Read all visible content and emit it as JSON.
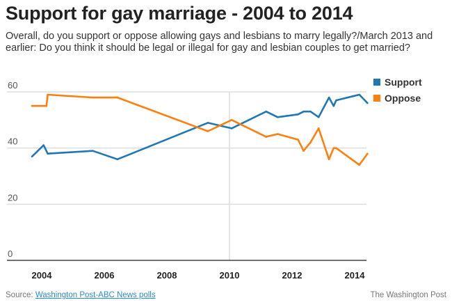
{
  "title": "Support for gay marriage - 2004 to 2014",
  "subtitle": "Overall, do you support or oppose allowing gays and lesbians to marry legally?/March 2013 and earlier: Do you think it should be legal or illegal for gay and lesbian couples to get married?",
  "source_label": "Source: ",
  "source_link": "Washington Post-ABC News polls",
  "credit": "The Washington Post",
  "chart_data": {
    "type": "line",
    "title": "Support for gay marriage - 2004 to 2014",
    "xlabel": "",
    "ylabel": "",
    "xlim": [
      2003.6,
      2014.45
    ],
    "ylim": [
      0,
      60
    ],
    "x_ticks": [
      "2004",
      "2006",
      "2008",
      "2010",
      "2012",
      "2014"
    ],
    "y_ticks": [
      "0",
      "20",
      "40",
      "60"
    ],
    "grid": "horizontal",
    "legend": "top-right",
    "series": [
      {
        "name": "Support",
        "color": "#1f77b4",
        "x": [
          2003.69,
          2004.06,
          2004.19,
          2005.63,
          2006.42,
          2009.31,
          2010.07,
          2011.17,
          2011.54,
          2012.19,
          2012.37,
          2012.59,
          2012.85,
          2013.18,
          2013.33,
          2013.41,
          2014.15,
          2014.41
        ],
        "values": [
          37,
          41,
          38,
          39,
          36,
          49,
          47,
          53,
          51,
          52,
          53,
          53,
          51,
          58,
          55,
          57,
          59,
          56
        ]
      },
      {
        "name": "Oppose",
        "color": "#ff7f0e",
        "x": [
          2003.69,
          2004.15,
          2004.19,
          2005.63,
          2006.42,
          2009.31,
          2010.07,
          2011.17,
          2011.54,
          2012.19,
          2012.37,
          2012.59,
          2012.85,
          2013.18,
          2013.33,
          2013.41,
          2014.15,
          2014.41
        ],
        "values": [
          55,
          55,
          59,
          58,
          58,
          46,
          50,
          44,
          45,
          43,
          39,
          42,
          47,
          36,
          40,
          40,
          34,
          38
        ]
      }
    ]
  }
}
